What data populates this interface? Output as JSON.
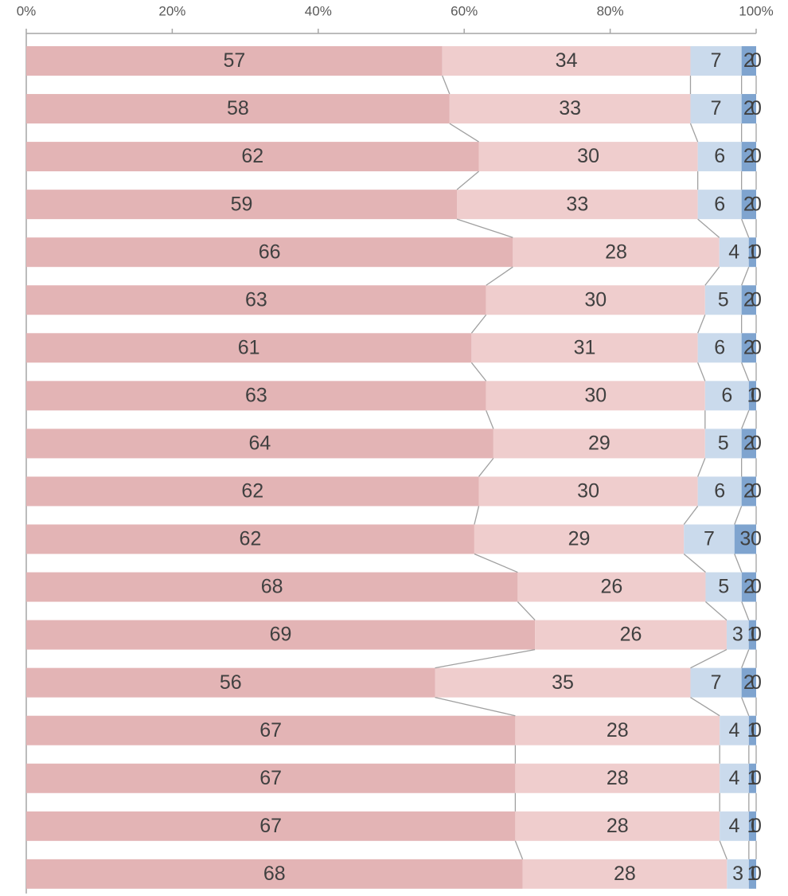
{
  "chart_data": {
    "type": "bar",
    "orientation": "horizontal",
    "stacked_percent": true,
    "xlim": [
      0,
      100
    ],
    "xticks": [
      {
        "value": 0,
        "label": "0%"
      },
      {
        "value": 20,
        "label": "20%"
      },
      {
        "value": 40,
        "label": "40%"
      },
      {
        "value": 60,
        "label": "60%"
      },
      {
        "value": 80,
        "label": "80%"
      },
      {
        "value": 100,
        "label": "100%"
      }
    ],
    "series_lines": true,
    "series": [
      {
        "color": "#e3b4b5",
        "values": [
          57,
          58,
          62,
          59,
          66,
          63,
          61,
          63,
          64,
          62,
          62,
          68,
          69,
          56,
          67,
          67,
          67,
          68
        ]
      },
      {
        "color": "#efcdcd",
        "values": [
          34,
          33,
          30,
          33,
          28,
          30,
          31,
          30,
          29,
          30,
          29,
          26,
          26,
          35,
          28,
          28,
          28,
          28
        ]
      },
      {
        "color": "#cadaec",
        "values": [
          7,
          7,
          6,
          6,
          4,
          5,
          6,
          6,
          5,
          6,
          7,
          5,
          3,
          7,
          4,
          4,
          4,
          3
        ]
      },
      {
        "color": "#7fa4cf",
        "values": [
          2,
          2,
          2,
          2,
          1,
          2,
          2,
          1,
          2,
          2,
          3,
          2,
          1,
          2,
          1,
          1,
          1,
          1
        ]
      },
      {
        "color": "#4472c4",
        "values": [
          0,
          0,
          0,
          0,
          0,
          0,
          0,
          0,
          0,
          0,
          0,
          0,
          0,
          0,
          0,
          0,
          0,
          0
        ]
      }
    ]
  }
}
